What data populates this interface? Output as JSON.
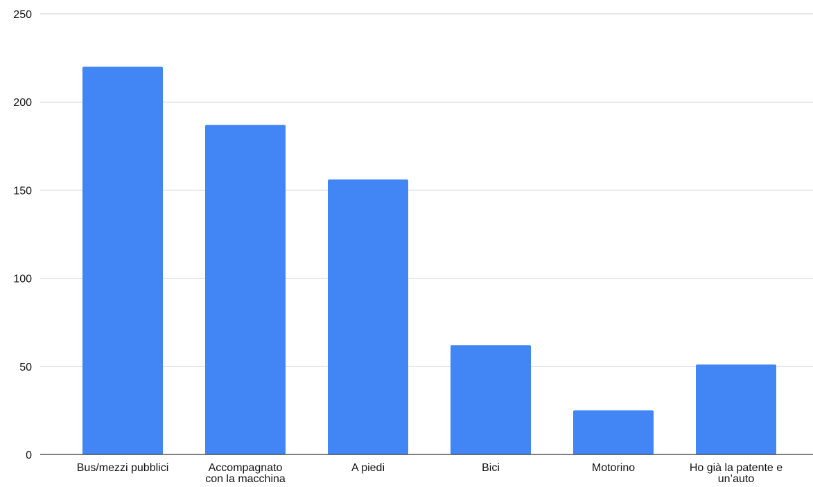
{
  "chart_data": {
    "type": "bar",
    "title": "",
    "xlabel": "",
    "ylabel": "",
    "categories": [
      [
        "Bus/mezzi pubblici"
      ],
      [
        "Accompagnato",
        "con la macchina"
      ],
      [
        "A piedi"
      ],
      [
        "Bici"
      ],
      [
        "Motorino"
      ],
      [
        "Ho già la patente e",
        "un’auto"
      ]
    ],
    "values": [
      220,
      187,
      156,
      62,
      25,
      51
    ],
    "ylim": [
      0,
      250
    ],
    "yticks": [
      0,
      50,
      100,
      150,
      200,
      250
    ],
    "grid": true,
    "legend": "none",
    "colors": {
      "bar": "#4285f4",
      "grid": "#cfcfcf",
      "axis": "#333333",
      "text": "#111111"
    }
  }
}
